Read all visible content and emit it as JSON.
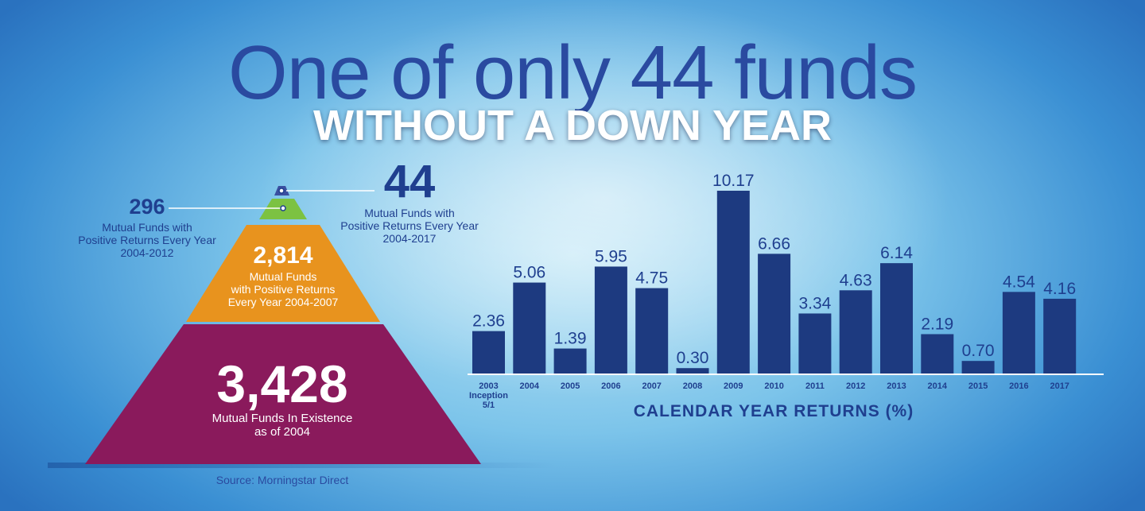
{
  "headline": "One of only 44 funds",
  "subhead": "WITHOUT A DOWN YEAR",
  "pyramid": {
    "tier1": {
      "value": "44",
      "text_1": "Mutual Funds with",
      "text_2": "Positive Returns Every Year",
      "text_3": "2004-2017"
    },
    "tier2": {
      "value": "296",
      "text_1": "Mutual Funds with",
      "text_2": "Positive Returns Every Year",
      "text_3": "2004-2012"
    },
    "tier3": {
      "value": "2,814",
      "text_1": "Mutual Funds",
      "text_2": "with Positive Returns",
      "text_3": "Every Year 2004-2007"
    },
    "tier4": {
      "value": "3,428",
      "text_1": "Mutual Funds In Existence",
      "text_2": "as of 2004"
    },
    "colors": {
      "top": "#3a4fa0",
      "tier2": "#7cc242",
      "tier3": "#e8931e",
      "tier4": "#8a1a5c"
    }
  },
  "source": "Source: Morningstar Direct",
  "chart_data": {
    "type": "bar",
    "categories": [
      "2003",
      "2004",
      "2005",
      "2006",
      "2007",
      "2008",
      "2009",
      "2010",
      "2011",
      "2012",
      "2013",
      "2014",
      "2015",
      "2016",
      "2017"
    ],
    "values": [
      2.36,
      5.06,
      1.39,
      5.95,
      4.75,
      0.3,
      10.17,
      6.66,
      3.34,
      4.63,
      6.14,
      2.19,
      0.7,
      4.54,
      4.16
    ],
    "value_labels": [
      "2.36",
      "5.06",
      "1.39",
      "5.95",
      "4.75",
      "0.30",
      "10.17",
      "6.66",
      "3.34",
      "4.63",
      "6.14",
      "2.19",
      "0.70",
      "4.54",
      "4.16"
    ],
    "category_notes": {
      "2003": [
        "Inception",
        "5/1"
      ]
    },
    "title": "",
    "xlabel": "CALENDAR YEAR RETURNS (%)",
    "ylabel": "",
    "ylim": [
      0,
      10.17
    ],
    "grid": false,
    "bar_color": "#1d3a80"
  }
}
